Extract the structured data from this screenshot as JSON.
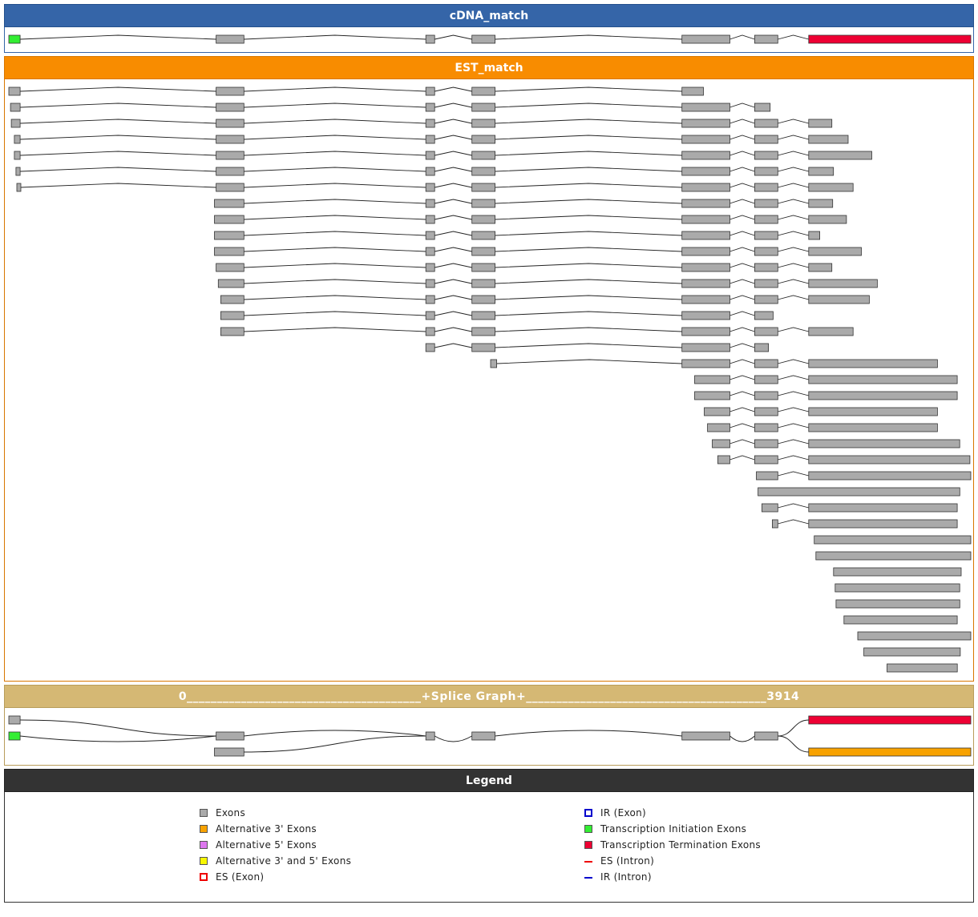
{
  "panels": {
    "cdna": {
      "title": "cDNA_match"
    },
    "est": {
      "title": "EST_match"
    },
    "splice": {
      "title": "0_______________________________________+Splice Graph+________________________________________3914"
    },
    "legend": {
      "title": "Legend"
    }
  },
  "colors": {
    "exon": "#aaaaaa",
    "alt3": "#f8a200",
    "alt5": "#dd77ee",
    "alt35": "#f8f800",
    "es_exon": "#ee0000",
    "ir_exon": "#0000cc",
    "init": "#33ee33",
    "term": "#ee0033",
    "es_intron": "#ee0000",
    "ir_intron": "#0000cc"
  },
  "legend": {
    "left": [
      {
        "key": "exons",
        "label": "Exons",
        "swatch": "exon"
      },
      {
        "key": "alt3",
        "label": "Alternative 3' Exons",
        "swatch": "alt3"
      },
      {
        "key": "alt5",
        "label": "Alternative 5' Exons",
        "swatch": "alt5"
      },
      {
        "key": "alt35",
        "label": "Alternative 3' and 5' Exons",
        "swatch": "alt35"
      },
      {
        "key": "es-exon",
        "label": "ES (Exon)",
        "swatch": "es_exon"
      }
    ],
    "right": [
      {
        "key": "ir-exon",
        "label": "IR (Exon)",
        "swatch": "ir_exon"
      },
      {
        "key": "init",
        "label": "Transcription Initiation Exons",
        "swatch": "init"
      },
      {
        "key": "term",
        "label": "Transcription Termination Exons",
        "swatch": "term"
      },
      {
        "key": "es-intron",
        "label": "ES (Intron)",
        "swatch": "es_intron"
      },
      {
        "key": "ir-intron",
        "label": "IR (Intron)",
        "swatch": "ir_intron"
      }
    ]
  },
  "coordinate_range": {
    "start": 0,
    "end": 3914
  },
  "cdna_match": [
    {
      "exons": [
        [
          0,
          41,
          "init"
        ],
        [
          752,
          853
        ],
        [
          1513,
          1545
        ],
        [
          1680,
          1764
        ],
        [
          2442,
          2616
        ],
        [
          2706,
          2790
        ],
        [
          2902,
          3490,
          "term"
        ]
      ]
    }
  ],
  "est_match": [
    {
      "exons": [
        [
          0,
          41
        ],
        [
          752,
          853
        ],
        [
          1513,
          1545
        ],
        [
          1680,
          1764
        ],
        [
          2442,
          2520
        ]
      ]
    },
    {
      "exons": [
        [
          6,
          41
        ],
        [
          752,
          853
        ],
        [
          1513,
          1545
        ],
        [
          1680,
          1764
        ],
        [
          2442,
          2616
        ],
        [
          2706,
          2762
        ]
      ]
    },
    {
      "exons": [
        [
          9,
          41
        ],
        [
          752,
          853
        ],
        [
          1513,
          1545
        ],
        [
          1680,
          1764
        ],
        [
          2442,
          2616
        ],
        [
          2706,
          2790
        ],
        [
          2902,
          2986
        ]
      ]
    },
    {
      "exons": [
        [
          20,
          41
        ],
        [
          752,
          853
        ],
        [
          1513,
          1545
        ],
        [
          1680,
          1764
        ],
        [
          2442,
          2616
        ],
        [
          2706,
          2790
        ],
        [
          2902,
          3045
        ]
      ]
    },
    {
      "exons": [
        [
          20,
          41
        ],
        [
          752,
          853
        ],
        [
          1513,
          1545
        ],
        [
          1680,
          1764
        ],
        [
          2442,
          2616
        ],
        [
          2706,
          2790
        ],
        [
          2902,
          3131
        ]
      ]
    },
    {
      "exons": [
        [
          26,
          41
        ],
        [
          752,
          853
        ],
        [
          1513,
          1545
        ],
        [
          1680,
          1764
        ],
        [
          2442,
          2616
        ],
        [
          2706,
          2790
        ],
        [
          2902,
          2992
        ]
      ]
    },
    {
      "exons": [
        [
          29,
          41
        ],
        [
          752,
          853
        ],
        [
          1513,
          1545
        ],
        [
          1680,
          1764
        ],
        [
          2442,
          2616
        ],
        [
          2706,
          2790
        ],
        [
          2902,
          3063
        ]
      ]
    },
    {
      "exons": [
        [
          746,
          853
        ],
        [
          1513,
          1545
        ],
        [
          1680,
          1764
        ],
        [
          2442,
          2616
        ],
        [
          2706,
          2790
        ],
        [
          2902,
          2989
        ]
      ]
    },
    {
      "exons": [
        [
          746,
          853
        ],
        [
          1513,
          1545
        ],
        [
          1680,
          1764
        ],
        [
          2442,
          2616
        ],
        [
          2706,
          2790
        ],
        [
          2902,
          3039
        ]
      ]
    },
    {
      "exons": [
        [
          746,
          853
        ],
        [
          1513,
          1545
        ],
        [
          1680,
          1764
        ],
        [
          2442,
          2616
        ],
        [
          2706,
          2790
        ],
        [
          2902,
          2942
        ]
      ]
    },
    {
      "exons": [
        [
          746,
          853
        ],
        [
          1513,
          1545
        ],
        [
          1680,
          1764
        ],
        [
          2442,
          2616
        ],
        [
          2706,
          2790
        ],
        [
          2902,
          3093
        ]
      ]
    },
    {
      "exons": [
        [
          752,
          853
        ],
        [
          1513,
          1545
        ],
        [
          1680,
          1764
        ],
        [
          2442,
          2616
        ],
        [
          2706,
          2790
        ],
        [
          2902,
          2986
        ]
      ]
    },
    {
      "exons": [
        [
          760,
          853
        ],
        [
          1513,
          1545
        ],
        [
          1680,
          1764
        ],
        [
          2442,
          2616
        ],
        [
          2706,
          2790
        ],
        [
          2902,
          3151
        ]
      ]
    },
    {
      "exons": [
        [
          769,
          853
        ],
        [
          1513,
          1545
        ],
        [
          1680,
          1764
        ],
        [
          2442,
          2616
        ],
        [
          2706,
          2790
        ],
        [
          2902,
          3122
        ]
      ]
    },
    {
      "exons": [
        [
          769,
          853
        ],
        [
          1513,
          1545
        ],
        [
          1680,
          1764
        ],
        [
          2442,
          2616
        ],
        [
          2706,
          2773
        ]
      ]
    },
    {
      "exons": [
        [
          769,
          853
        ],
        [
          1513,
          1545
        ],
        [
          1680,
          1764
        ],
        [
          2442,
          2616
        ],
        [
          2706,
          2790
        ],
        [
          2902,
          3063
        ]
      ]
    },
    {
      "exons": [
        [
          1513,
          1545
        ],
        [
          1680,
          1764
        ],
        [
          2442,
          2616
        ],
        [
          2706,
          2756
        ]
      ]
    },
    {
      "exons": [
        [
          1748,
          1770
        ],
        [
          2442,
          2616
        ],
        [
          2706,
          2790
        ],
        [
          2902,
          3369
        ]
      ]
    },
    {
      "exons": [
        [
          2488,
          2616
        ],
        [
          2706,
          2790
        ],
        [
          2902,
          3441
        ]
      ]
    },
    {
      "exons": [
        [
          2488,
          2616
        ],
        [
          2706,
          2790
        ],
        [
          2902,
          3441
        ]
      ]
    },
    {
      "exons": [
        [
          2523,
          2616
        ],
        [
          2706,
          2790
        ],
        [
          2902,
          3369
        ]
      ]
    },
    {
      "exons": [
        [
          2535,
          2616
        ],
        [
          2706,
          2790
        ],
        [
          2902,
          3369
        ]
      ]
    },
    {
      "exons": [
        [
          2552,
          2616
        ],
        [
          2706,
          2790
        ],
        [
          2902,
          3450
        ]
      ]
    },
    {
      "exons": [
        [
          2572,
          2616
        ],
        [
          2706,
          2790
        ],
        [
          2902,
          3487
        ]
      ]
    },
    {
      "exons": [
        [
          2712,
          2790
        ],
        [
          2902,
          3490
        ]
      ]
    },
    {
      "exons": [
        [
          2718,
          3450
        ]
      ]
    },
    {
      "exons": [
        [
          2732,
          2790
        ],
        [
          2902,
          3441
        ]
      ]
    },
    {
      "exons": [
        [
          2770,
          2790
        ],
        [
          2902,
          3441
        ]
      ]
    },
    {
      "exons": [
        [
          2922,
          3490
        ]
      ]
    },
    {
      "exons": [
        [
          2928,
          3490
        ]
      ]
    },
    {
      "exons": [
        [
          2992,
          3455
        ]
      ]
    },
    {
      "exons": [
        [
          2998,
          3450
        ]
      ]
    },
    {
      "exons": [
        [
          3001,
          3450
        ]
      ]
    },
    {
      "exons": [
        [
          3030,
          3441
        ]
      ]
    },
    {
      "exons": [
        [
          3080,
          3490
        ]
      ]
    },
    {
      "exons": [
        [
          3102,
          3452
        ]
      ]
    },
    {
      "exons": [
        [
          3186,
          3441
        ]
      ]
    }
  ],
  "splice_graph": {
    "nodes": [
      {
        "id": "n1",
        "start": 0,
        "end": 41,
        "row": 0,
        "kind": "exon"
      },
      {
        "id": "n2",
        "start": 0,
        "end": 41,
        "row": 1,
        "kind": "init"
      },
      {
        "id": "n3",
        "start": 752,
        "end": 853,
        "row": 1,
        "kind": "exon"
      },
      {
        "id": "n4",
        "start": 746,
        "end": 853,
        "row": 2,
        "kind": "exon"
      },
      {
        "id": "n5",
        "start": 1513,
        "end": 1545,
        "row": 1,
        "kind": "exon"
      },
      {
        "id": "n6",
        "start": 1680,
        "end": 1764,
        "row": 1,
        "kind": "exon"
      },
      {
        "id": "n7",
        "start": 2442,
        "end": 2616,
        "row": 1,
        "kind": "exon"
      },
      {
        "id": "n8",
        "start": 2706,
        "end": 2790,
        "row": 1,
        "kind": "exon"
      },
      {
        "id": "n9",
        "start": 2902,
        "end": 3490,
        "row": 0,
        "kind": "term"
      },
      {
        "id": "n10",
        "start": 2902,
        "end": 3490,
        "row": 2,
        "kind": "alt3"
      }
    ],
    "edges": [
      [
        "n1",
        "n3"
      ],
      [
        "n2",
        "n3"
      ],
      [
        "n3",
        "n5"
      ],
      [
        "n4",
        "n5"
      ],
      [
        "n5",
        "n6"
      ],
      [
        "n6",
        "n7"
      ],
      [
        "n7",
        "n8"
      ],
      [
        "n8",
        "n9"
      ],
      [
        "n8",
        "n10"
      ]
    ]
  }
}
